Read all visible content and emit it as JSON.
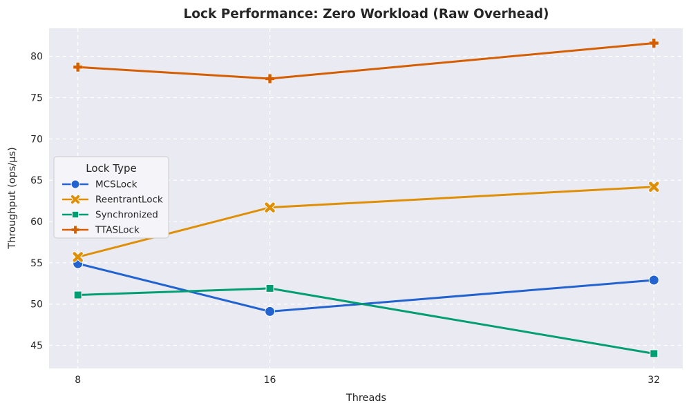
{
  "chart_data": {
    "type": "line",
    "title": "Lock Performance: Zero Workload (Raw Overhead)",
    "xlabel": "Threads",
    "ylabel": "Throughput (ops/µs)",
    "x": [
      8,
      16,
      32
    ],
    "x_tick_labels": [
      "8",
      "16",
      "32"
    ],
    "y_ticks": [
      45,
      50,
      55,
      60,
      65,
      70,
      75,
      80
    ],
    "xlim": [
      6.8,
      33.2
    ],
    "ylim": [
      42.2,
      83.4
    ],
    "grid": "dashed white gridlines on lavender panel, both axes",
    "legend": {
      "title": "Lock Type",
      "position": "center-left"
    },
    "series": [
      {
        "name": "MCSLock",
        "marker": "circle",
        "color": "#2263cf",
        "values": [
          54.9,
          49.1,
          52.9
        ]
      },
      {
        "name": "ReentrantLock",
        "marker": "x",
        "color": "#de8f05",
        "values": [
          55.7,
          61.7,
          64.2
        ]
      },
      {
        "name": "Synchronized",
        "marker": "square",
        "color": "#029e73",
        "values": [
          51.1,
          51.9,
          44.0
        ]
      },
      {
        "name": "TTASLock",
        "marker": "plus",
        "color": "#d55e00",
        "values": [
          78.7,
          77.3,
          81.6
        ]
      }
    ],
    "colors": {
      "panel_bg": "#eaeaf2",
      "grid": "#ffffff",
      "text": "#262626",
      "legend_bg": "#f4f4f9",
      "legend_border": "#cccccc"
    }
  }
}
